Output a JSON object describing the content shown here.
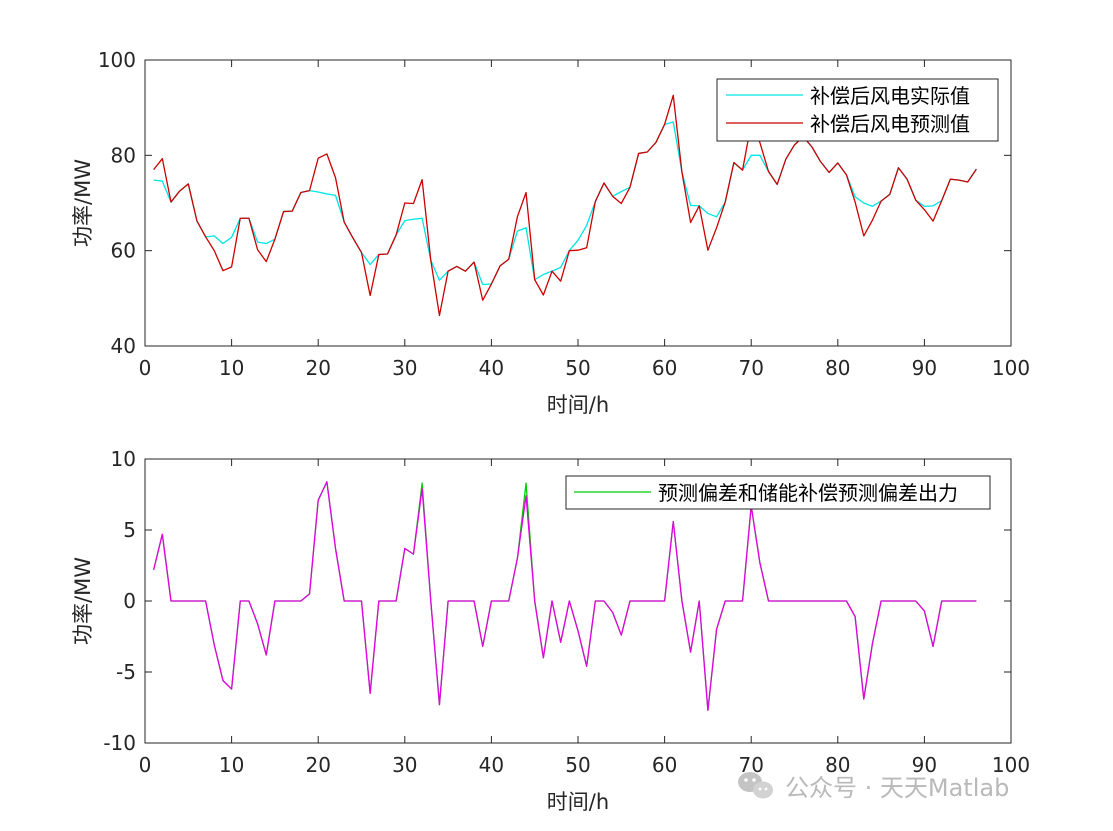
{
  "chart_data": [
    {
      "type": "line",
      "xlabel": "时间/h",
      "ylabel": "功率/MW",
      "xlim": [
        0,
        100
      ],
      "ylim": [
        40,
        100
      ],
      "xticks": [
        "0",
        "10",
        "20",
        "30",
        "40",
        "50",
        "60",
        "70",
        "80",
        "90",
        "100"
      ],
      "yticks": [
        "40",
        "60",
        "80",
        "100"
      ],
      "legend_position": "top-right",
      "x": [
        1,
        2,
        3,
        4,
        5,
        6,
        7,
        8,
        9,
        10,
        11,
        12,
        13,
        14,
        15,
        16,
        17,
        18,
        19,
        20,
        21,
        22,
        23,
        24,
        25,
        26,
        27,
        28,
        29,
        30,
        31,
        32,
        33,
        34,
        35,
        36,
        37,
        38,
        39,
        40,
        41,
        42,
        43,
        44,
        45,
        46,
        47,
        48,
        49,
        50,
        51,
        52,
        53,
        54,
        55,
        56,
        57,
        58,
        59,
        60,
        61,
        62,
        63,
        64,
        65,
        66,
        67,
        68,
        69,
        70,
        71,
        72,
        73,
        74,
        75,
        76,
        77,
        78,
        79,
        80,
        81,
        82,
        83,
        84,
        85,
        86,
        87,
        88,
        89,
        90,
        91,
        92,
        93,
        94,
        95,
        96
      ],
      "series": [
        {
          "name": "补偿后风电实际值",
          "color": "#00E5E5",
          "values": [
            74.8,
            74.6,
            70.2,
            72.5,
            74.0,
            66.2,
            62.9,
            63.1,
            61.5,
            62.8,
            66.8,
            66.8,
            61.8,
            61.5,
            62.4,
            68.2,
            68.3,
            72.2,
            72.6,
            72.3,
            71.9,
            71.6,
            66.0,
            62.7,
            59.6,
            57.1,
            59.2,
            59.3,
            63.3,
            66.3,
            66.6,
            66.8,
            58.0,
            53.8,
            55.7,
            56.7,
            55.7,
            57.6,
            52.9,
            53.0,
            56.8,
            58.2,
            64.1,
            64.8,
            53.9,
            55.0,
            55.7,
            56.5,
            60.0,
            62.2,
            65.3,
            70.3,
            74.2,
            71.4,
            72.4,
            73.3,
            80.4,
            80.7,
            82.7,
            86.5,
            87.0,
            76.5,
            69.5,
            69.4,
            67.8,
            67.1,
            70.2,
            78.5,
            76.9,
            80.0,
            80.0,
            76.6,
            73.9,
            79.2,
            82.2,
            83.9,
            81.8,
            78.7,
            76.4,
            78.4,
            75.9,
            71.3,
            70.0,
            69.3,
            70.4,
            71.8,
            77.4,
            75.0,
            70.6,
            69.3,
            69.4,
            70.5,
            75.0,
            74.8,
            74.4,
            77.1
          ]
        },
        {
          "name": "补偿后风电预测值",
          "color": "#CC0000",
          "values": [
            77.0,
            79.3,
            70.2,
            72.5,
            74.0,
            66.2,
            62.9,
            60.0,
            55.8,
            56.6,
            66.8,
            66.8,
            60.2,
            57.7,
            62.4,
            68.2,
            68.3,
            72.2,
            72.6,
            79.4,
            80.3,
            75.3,
            66.0,
            62.7,
            59.6,
            50.6,
            59.2,
            59.3,
            63.3,
            70.0,
            69.9,
            74.9,
            58.0,
            46.4,
            55.7,
            56.7,
            55.7,
            57.6,
            49.6,
            53.0,
            56.8,
            58.2,
            67.1,
            72.2,
            53.9,
            50.7,
            55.7,
            53.6,
            60.0,
            60.1,
            60.6,
            70.3,
            74.2,
            71.4,
            69.9,
            73.3,
            80.4,
            80.7,
            82.7,
            86.5,
            92.6,
            76.5,
            65.9,
            69.4,
            60.1,
            64.8,
            70.2,
            78.5,
            76.9,
            86.7,
            82.7,
            76.6,
            73.9,
            79.2,
            82.2,
            83.9,
            81.8,
            78.7,
            76.4,
            78.4,
            75.9,
            70.2,
            63.1,
            66.4,
            70.4,
            71.8,
            77.4,
            75.0,
            70.6,
            68.6,
            66.2,
            70.5,
            75.0,
            74.8,
            74.4,
            77.1
          ]
        }
      ]
    },
    {
      "type": "line",
      "xlabel": "时间/h",
      "ylabel": "功率/MW",
      "xlim": [
        0,
        100
      ],
      "ylim": [
        -10,
        10
      ],
      "xticks": [
        "0",
        "10",
        "20",
        "30",
        "40",
        "50",
        "60",
        "70",
        "80",
        "90",
        "100"
      ],
      "yticks": [
        "-10",
        "-5",
        "0",
        "5",
        "10"
      ],
      "legend_position": "top-right",
      "x": [
        1,
        2,
        3,
        4,
        5,
        6,
        7,
        8,
        9,
        10,
        11,
        12,
        13,
        14,
        15,
        16,
        17,
        18,
        19,
        20,
        21,
        22,
        23,
        24,
        25,
        26,
        27,
        28,
        29,
        30,
        31,
        32,
        33,
        34,
        35,
        36,
        37,
        38,
        39,
        40,
        41,
        42,
        43,
        44,
        45,
        46,
        47,
        48,
        49,
        50,
        51,
        52,
        53,
        54,
        55,
        56,
        57,
        58,
        59,
        60,
        61,
        62,
        63,
        64,
        65,
        66,
        67,
        68,
        69,
        70,
        71,
        72,
        73,
        74,
        75,
        76,
        77,
        78,
        79,
        80,
        81,
        82,
        83,
        84,
        85,
        86,
        87,
        88,
        89,
        90,
        91,
        92,
        93,
        94,
        95,
        96
      ],
      "series": [
        {
          "name": "预测偏差和储能补偿预测偏差出力",
          "color": "#00CC00",
          "values": [
            2.2,
            4.7,
            0,
            0,
            0,
            0,
            0,
            -3.1,
            -5.6,
            -6.2,
            0,
            0,
            -1.6,
            -3.8,
            0,
            0,
            0,
            0,
            0.5,
            7.1,
            8.4,
            3.7,
            0,
            0,
            0,
            -6.5,
            0,
            0,
            0,
            3.7,
            3.3,
            8.3,
            0,
            -7.3,
            0,
            0,
            0,
            0,
            -3.2,
            0,
            0,
            0,
            3.0,
            8.3,
            0,
            -4.0,
            0,
            -2.9,
            0,
            -2.1,
            -4.6,
            0,
            0,
            -0.8,
            -2.4,
            0,
            0,
            0,
            0,
            0,
            5.6,
            0,
            -3.6,
            0,
            -7.7,
            -2.0,
            0,
            0,
            0,
            6.7,
            2.7,
            0,
            0,
            0,
            0,
            0,
            0,
            0,
            0,
            0,
            0,
            -1.1,
            -6.9,
            -3.0,
            0,
            0,
            0,
            0,
            0,
            -0.7,
            -3.2,
            0,
            0,
            0,
            0,
            0
          ]
        },
        {
          "color": "#E600E6",
          "values": [
            2.2,
            4.7,
            0,
            0,
            0,
            0,
            0,
            -3.1,
            -5.6,
            -6.2,
            0,
            0,
            -1.6,
            -3.8,
            0,
            0,
            0,
            0,
            0.5,
            7.1,
            8.4,
            3.7,
            0,
            0,
            0,
            -6.5,
            0,
            0,
            0,
            3.7,
            3.3,
            7.9,
            0,
            -7.3,
            0,
            0,
            0,
            0,
            -3.2,
            0,
            0,
            0,
            3.0,
            7.4,
            0,
            -4.0,
            0,
            -2.9,
            0,
            -2.1,
            -4.6,
            0,
            0,
            -0.8,
            -2.4,
            0,
            0,
            0,
            0,
            0,
            5.6,
            0,
            -3.6,
            0,
            -7.7,
            -2.0,
            0,
            0,
            0,
            6.7,
            2.7,
            0,
            0,
            0,
            0,
            0,
            0,
            0,
            0,
            0,
            0,
            -1.1,
            -6.9,
            -3.0,
            0,
            0,
            0,
            0,
            0,
            -0.7,
            -3.2,
            0,
            0,
            0,
            0,
            0
          ]
        }
      ]
    }
  ],
  "watermark": {
    "text": "公众号 · 天天Matlab",
    "icon": "wechat-icon"
  }
}
